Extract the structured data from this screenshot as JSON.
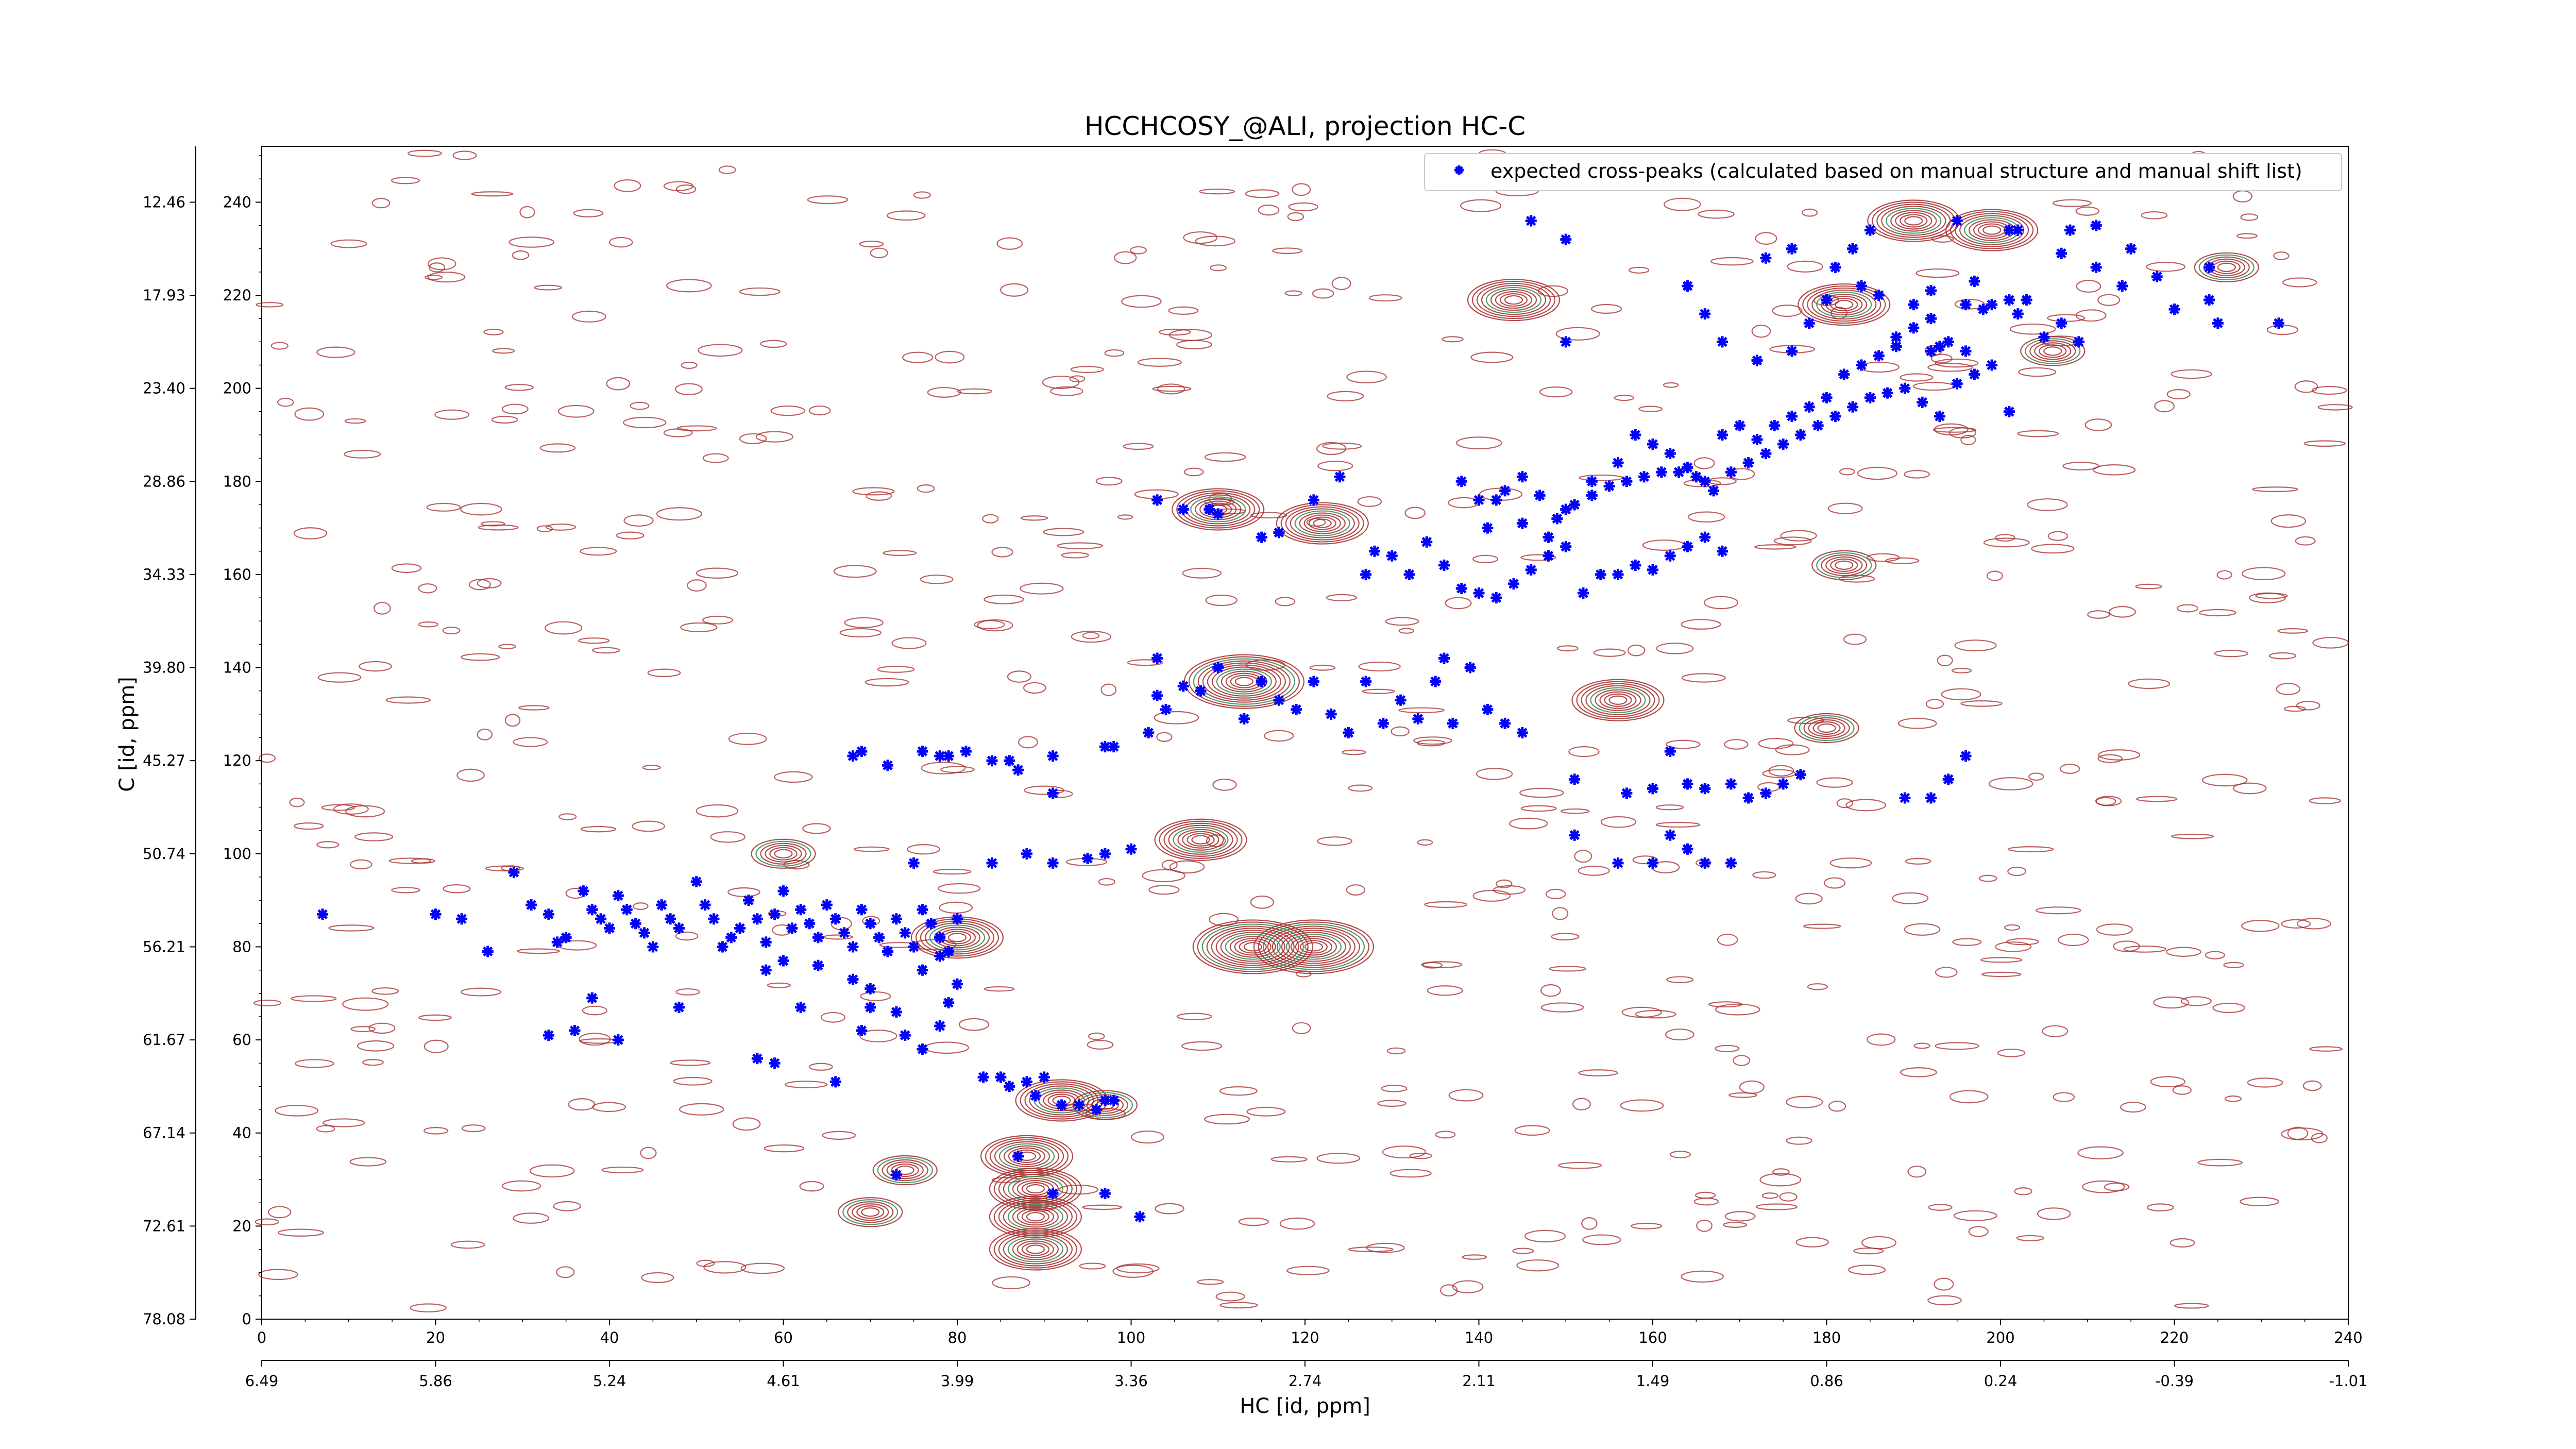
{
  "chart_data": {
    "type": "scatter",
    "title": "HCCHCOSY_@ALI, projection HC-C",
    "xlabel": "HC [id, ppm]",
    "ylabel": "C [id, ppm]",
    "xlim": [
      0,
      240
    ],
    "ylim": [
      0,
      252
    ],
    "x_index_ticks": [
      "0",
      "20",
      "40",
      "60",
      "80",
      "100",
      "120",
      "140",
      "160",
      "180",
      "200",
      "220",
      "240"
    ],
    "x_ppm_ticks": [
      "6.49",
      "5.86",
      "5.24",
      "4.61",
      "3.99",
      "3.36",
      "2.74",
      "2.11",
      "1.49",
      "0.86",
      "0.24",
      "-0.39",
      "-1.01"
    ],
    "y_index_ticks": [
      "0",
      "20",
      "40",
      "60",
      "80",
      "100",
      "120",
      "140",
      "160",
      "180",
      "200",
      "220",
      "240"
    ],
    "y_ppm_ticks": [
      "78.08",
      "72.61",
      "67.14",
      "61.67",
      "56.21",
      "50.74",
      "45.27",
      "39.80",
      "34.33",
      "28.86",
      "23.40",
      "17.93",
      "12.46"
    ],
    "legend": {
      "label": "expected cross-peaks (calculated based on manual structure and manual shift list)",
      "placement": "upper-right"
    },
    "colors": {
      "marker": "#0000ff",
      "contour_positive": "#a52a2a",
      "contour_negative": "#2e8b57"
    },
    "series": [
      {
        "name": "expected cross-peaks (calculated based on manual structure and manual shift list)",
        "points": [
          [
            7,
            87
          ],
          [
            20,
            87
          ],
          [
            23,
            86
          ],
          [
            26,
            79
          ],
          [
            29,
            96
          ],
          [
            31,
            89
          ],
          [
            33,
            87
          ],
          [
            34,
            81
          ],
          [
            35,
            82
          ],
          [
            37,
            92
          ],
          [
            38,
            88
          ],
          [
            39,
            86
          ],
          [
            40,
            84
          ],
          [
            41,
            91
          ],
          [
            42,
            88
          ],
          [
            43,
            85
          ],
          [
            44,
            83
          ],
          [
            45,
            80
          ],
          [
            46,
            89
          ],
          [
            47,
            86
          ],
          [
            48,
            84
          ],
          [
            50,
            94
          ],
          [
            51,
            89
          ],
          [
            52,
            86
          ],
          [
            53,
            80
          ],
          [
            54,
            82
          ],
          [
            55,
            84
          ],
          [
            56,
            90
          ],
          [
            57,
            86
          ],
          [
            58,
            81
          ],
          [
            59,
            87
          ],
          [
            60,
            92
          ],
          [
            61,
            84
          ],
          [
            62,
            88
          ],
          [
            63,
            85
          ],
          [
            64,
            82
          ],
          [
            65,
            89
          ],
          [
            66,
            86
          ],
          [
            67,
            83
          ],
          [
            68,
            80
          ],
          [
            69,
            88
          ],
          [
            70,
            85
          ],
          [
            71,
            82
          ],
          [
            72,
            79
          ],
          [
            73,
            86
          ],
          [
            74,
            83
          ],
          [
            75,
            80
          ],
          [
            76,
            88
          ],
          [
            77,
            85
          ],
          [
            78,
            82
          ],
          [
            79,
            79
          ],
          [
            80,
            86
          ],
          [
            33,
            61
          ],
          [
            36,
            62
          ],
          [
            41,
            60
          ],
          [
            38,
            69
          ],
          [
            48,
            67
          ],
          [
            57,
            56
          ],
          [
            59,
            55
          ],
          [
            62,
            67
          ],
          [
            66,
            51
          ],
          [
            69,
            62
          ],
          [
            70,
            67
          ],
          [
            73,
            66
          ],
          [
            74,
            61
          ],
          [
            76,
            58
          ],
          [
            78,
            63
          ],
          [
            79,
            68
          ],
          [
            80,
            72
          ],
          [
            83,
            52
          ],
          [
            85,
            52
          ],
          [
            86,
            50
          ],
          [
            88,
            51
          ],
          [
            89,
            48
          ],
          [
            90,
            52
          ],
          [
            92,
            46
          ],
          [
            94,
            46
          ],
          [
            96,
            45
          ],
          [
            97,
            47
          ],
          [
            98,
            47
          ],
          [
            73,
            31
          ],
          [
            87,
            35
          ],
          [
            91,
            27
          ],
          [
            97,
            27
          ],
          [
            101,
            22
          ],
          [
            75,
            98
          ],
          [
            84,
            98
          ],
          [
            88,
            100
          ],
          [
            91,
            98
          ],
          [
            95,
            99
          ],
          [
            97,
            100
          ],
          [
            100,
            101
          ],
          [
            58,
            75
          ],
          [
            60,
            77
          ],
          [
            64,
            76
          ],
          [
            68,
            73
          ],
          [
            70,
            71
          ],
          [
            76,
            75
          ],
          [
            78,
            78
          ],
          [
            68,
            121
          ],
          [
            69,
            122
          ],
          [
            72,
            119
          ],
          [
            76,
            122
          ],
          [
            78,
            121
          ],
          [
            79,
            121
          ],
          [
            81,
            122
          ],
          [
            84,
            120
          ],
          [
            86,
            120
          ],
          [
            87,
            118
          ],
          [
            91,
            121
          ],
          [
            91,
            113
          ],
          [
            97,
            123
          ],
          [
            98,
            123
          ],
          [
            102,
            126
          ],
          [
            103,
            134
          ],
          [
            104,
            131
          ],
          [
            103,
            142
          ],
          [
            106,
            136
          ],
          [
            108,
            135
          ],
          [
            110,
            140
          ],
          [
            113,
            129
          ],
          [
            115,
            137
          ],
          [
            117,
            133
          ],
          [
            119,
            131
          ],
          [
            121,
            137
          ],
          [
            123,
            130
          ],
          [
            125,
            126
          ],
          [
            127,
            137
          ],
          [
            129,
            128
          ],
          [
            131,
            133
          ],
          [
            133,
            129
          ],
          [
            135,
            137
          ],
          [
            136,
            142
          ],
          [
            137,
            128
          ],
          [
            139,
            140
          ],
          [
            141,
            131
          ],
          [
            143,
            128
          ],
          [
            145,
            126
          ],
          [
            103,
            176
          ],
          [
            106,
            174
          ],
          [
            109,
            174
          ],
          [
            110,
            173
          ],
          [
            115,
            168
          ],
          [
            117,
            169
          ],
          [
            121,
            176
          ],
          [
            124,
            181
          ],
          [
            127,
            160
          ],
          [
            128,
            165
          ],
          [
            130,
            164
          ],
          [
            132,
            160
          ],
          [
            134,
            167
          ],
          [
            136,
            162
          ],
          [
            138,
            157
          ],
          [
            140,
            156
          ],
          [
            142,
            155
          ],
          [
            144,
            158
          ],
          [
            146,
            161
          ],
          [
            148,
            164
          ],
          [
            150,
            166
          ],
          [
            152,
            156
          ],
          [
            154,
            160
          ],
          [
            156,
            160
          ],
          [
            158,
            162
          ],
          [
            160,
            161
          ],
          [
            162,
            164
          ],
          [
            164,
            166
          ],
          [
            166,
            168
          ],
          [
            168,
            165
          ],
          [
            138,
            180
          ],
          [
            140,
            176
          ],
          [
            141,
            170
          ],
          [
            143,
            178
          ],
          [
            145,
            181
          ],
          [
            147,
            177
          ],
          [
            149,
            172
          ],
          [
            151,
            175
          ],
          [
            153,
            177
          ],
          [
            155,
            179
          ],
          [
            157,
            180
          ],
          [
            159,
            181
          ],
          [
            161,
            182
          ],
          [
            163,
            182
          ],
          [
            165,
            181
          ],
          [
            167,
            178
          ],
          [
            169,
            182
          ],
          [
            171,
            184
          ],
          [
            173,
            186
          ],
          [
            175,
            188
          ],
          [
            177,
            190
          ],
          [
            179,
            192
          ],
          [
            181,
            194
          ],
          [
            183,
            196
          ],
          [
            185,
            198
          ],
          [
            187,
            199
          ],
          [
            189,
            200
          ],
          [
            191,
            197
          ],
          [
            193,
            194
          ],
          [
            195,
            201
          ],
          [
            197,
            203
          ],
          [
            199,
            205
          ],
          [
            201,
            195
          ],
          [
            142,
            176
          ],
          [
            145,
            171
          ],
          [
            148,
            168
          ],
          [
            150,
            174
          ],
          [
            153,
            180
          ],
          [
            156,
            184
          ],
          [
            158,
            190
          ],
          [
            160,
            188
          ],
          [
            162,
            186
          ],
          [
            164,
            183
          ],
          [
            166,
            180
          ],
          [
            168,
            190
          ],
          [
            170,
            192
          ],
          [
            172,
            189
          ],
          [
            174,
            192
          ],
          [
            176,
            194
          ],
          [
            178,
            196
          ],
          [
            180,
            198
          ],
          [
            182,
            203
          ],
          [
            184,
            205
          ],
          [
            186,
            207
          ],
          [
            188,
            211
          ],
          [
            190,
            213
          ],
          [
            192,
            215
          ],
          [
            150,
            210
          ],
          [
            166,
            216
          ],
          [
            172,
            206
          ],
          [
            176,
            208
          ],
          [
            178,
            214
          ],
          [
            180,
            219
          ],
          [
            183,
            230
          ],
          [
            185,
            234
          ],
          [
            188,
            209
          ],
          [
            192,
            208
          ],
          [
            194,
            210
          ],
          [
            196,
            208
          ],
          [
            198,
            217
          ],
          [
            202,
            216
          ],
          [
            205,
            211
          ],
          [
            207,
            214
          ],
          [
            209,
            210
          ],
          [
            211,
            235
          ],
          [
            215,
            230
          ],
          [
            220,
            217
          ],
          [
            225,
            214
          ],
          [
            232,
            214
          ],
          [
            146,
            236
          ],
          [
            150,
            232
          ],
          [
            164,
            222
          ],
          [
            168,
            210
          ],
          [
            173,
            228
          ],
          [
            176,
            230
          ],
          [
            181,
            226
          ],
          [
            184,
            222
          ],
          [
            186,
            220
          ],
          [
            190,
            218
          ],
          [
            193,
            209
          ],
          [
            196,
            218
          ],
          [
            199,
            218
          ],
          [
            201,
            219
          ],
          [
            203,
            219
          ],
          [
            208,
            234
          ],
          [
            211,
            226
          ],
          [
            218,
            224
          ],
          [
            224,
            219
          ],
          [
            201,
            234
          ],
          [
            207,
            229
          ],
          [
            214,
            222
          ],
          [
            192,
            221
          ],
          [
            195,
            236
          ],
          [
            197,
            223
          ],
          [
            202,
            234
          ],
          [
            224,
            226
          ],
          [
            151,
            116
          ],
          [
            157,
            113
          ],
          [
            160,
            114
          ],
          [
            162,
            122
          ],
          [
            164,
            115
          ],
          [
            166,
            114
          ],
          [
            169,
            115
          ],
          [
            171,
            112
          ],
          [
            173,
            113
          ],
          [
            175,
            115
          ],
          [
            177,
            117
          ],
          [
            189,
            112
          ],
          [
            192,
            112
          ],
          [
            194,
            116
          ],
          [
            196,
            121
          ],
          [
            151,
            104
          ],
          [
            156,
            98
          ],
          [
            160,
            98
          ],
          [
            162,
            104
          ],
          [
            164,
            101
          ],
          [
            166,
            98
          ],
          [
            169,
            98
          ]
        ]
      }
    ]
  }
}
